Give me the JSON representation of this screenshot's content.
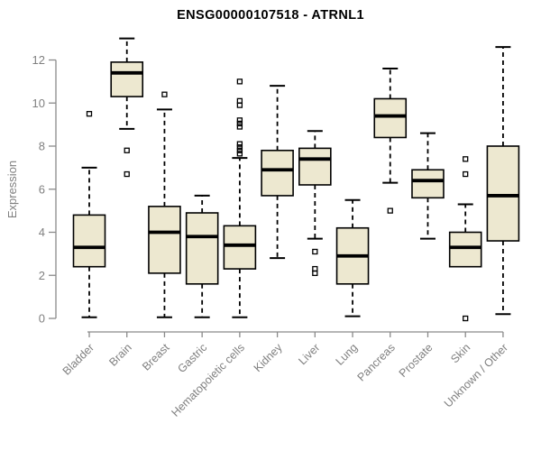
{
  "chart_data": {
    "type": "boxplot",
    "title": "ENSG00000107518 - ATRNL1",
    "xlabel": "",
    "ylabel": "Expression",
    "ylim": [
      0,
      13.2
    ],
    "yticks": [
      0,
      2,
      4,
      6,
      8,
      10,
      12
    ],
    "grid": false,
    "legend": "none",
    "categories": [
      "Bladder",
      "Brain",
      "Breast",
      "Gastric",
      "Hematopoietic cells",
      "Kidney",
      "Liver",
      "Lung",
      "Pancreas",
      "Prostate",
      "Skin",
      "Unknown / Other"
    ],
    "series": [
      {
        "category": "Bladder",
        "whisker_low": 0.05,
        "q1": 2.4,
        "median": 3.3,
        "q3": 4.8,
        "whisker_high": 7.0,
        "outliers": [
          9.5
        ]
      },
      {
        "category": "Brain",
        "whisker_low": 8.8,
        "q1": 10.3,
        "median": 11.4,
        "q3": 11.9,
        "whisker_high": 13.0,
        "outliers": [
          7.8,
          6.7
        ]
      },
      {
        "category": "Breast",
        "whisker_low": 0.05,
        "q1": 2.1,
        "median": 4.0,
        "q3": 5.2,
        "whisker_high": 9.7,
        "outliers": [
          10.4
        ]
      },
      {
        "category": "Gastric",
        "whisker_low": 0.05,
        "q1": 1.6,
        "median": 3.8,
        "q3": 4.9,
        "whisker_high": 5.7,
        "outliers": []
      },
      {
        "category": "Hematopoietic cells",
        "whisker_low": 0.05,
        "q1": 2.3,
        "median": 3.4,
        "q3": 4.3,
        "whisker_high": 7.45,
        "outliers": [
          11.0,
          10.1,
          9.9,
          9.2,
          9.05,
          8.9,
          8.1,
          7.95,
          7.8,
          7.65
        ]
      },
      {
        "category": "Kidney",
        "whisker_low": 2.8,
        "q1": 5.7,
        "median": 6.9,
        "q3": 7.8,
        "whisker_high": 10.8,
        "outliers": []
      },
      {
        "category": "Liver",
        "whisker_low": 3.7,
        "q1": 6.2,
        "median": 7.4,
        "q3": 7.9,
        "whisker_high": 8.7,
        "outliers": [
          3.1,
          2.3,
          2.1
        ]
      },
      {
        "category": "Lung",
        "whisker_low": 0.1,
        "q1": 1.6,
        "median": 2.9,
        "q3": 4.2,
        "whisker_high": 5.5,
        "outliers": []
      },
      {
        "category": "Pancreas",
        "whisker_low": 6.3,
        "q1": 8.4,
        "median": 9.4,
        "q3": 10.2,
        "whisker_high": 11.6,
        "outliers": [
          5.0
        ]
      },
      {
        "category": "Prostate",
        "whisker_low": 3.7,
        "q1": 5.6,
        "median": 6.4,
        "q3": 6.9,
        "whisker_high": 8.6,
        "outliers": []
      },
      {
        "category": "Skin",
        "whisker_low": 2.4,
        "q1": 2.4,
        "median": 3.3,
        "q3": 4.0,
        "whisker_high": 5.3,
        "outliers": [
          7.4,
          6.7,
          0.0
        ]
      },
      {
        "category": "Unknown / Other",
        "whisker_low": 0.2,
        "q1": 3.6,
        "median": 5.7,
        "q3": 8.0,
        "whisker_high": 12.6,
        "outliers": []
      }
    ],
    "colors": {
      "box_fill": "#EDE8D0",
      "box_stroke": "#000000",
      "median": "#000000",
      "whisker": "#000000",
      "axis_line": "#8A8A8A",
      "tick_label": "#808080",
      "title": "#000000",
      "background": "#FFFFFF"
    }
  }
}
